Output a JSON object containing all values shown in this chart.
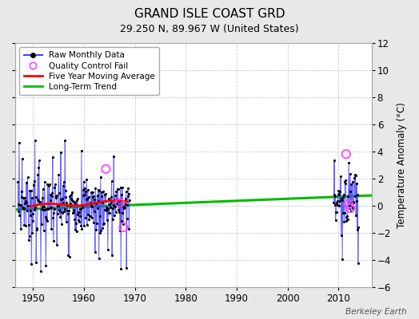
{
  "title": "GRAND ISLE COAST GRD",
  "subtitle": "29.250 N, 89.967 W (United States)",
  "ylabel": "Temperature Anomaly (°C)",
  "credit": "Berkeley Earth",
  "xlim": [
    1946.5,
    2016.5
  ],
  "ylim": [
    -6,
    12
  ],
  "yticks_right": [
    -6,
    -4,
    -2,
    0,
    2,
    4,
    6,
    8,
    10,
    12
  ],
  "xticks": [
    1950,
    1960,
    1970,
    1980,
    1990,
    2000,
    2010
  ],
  "bg_color": "#e8e8e8",
  "plot_bg_color": "#ffffff",
  "raw_color": "#4444ff",
  "raw_dot_color": "#000000",
  "qc_color": "#ff44ff",
  "ma_color": "#ff0000",
  "trend_color": "#00bb00",
  "trend_x": [
    1946.5,
    2016.5
  ],
  "trend_y": [
    -0.3,
    0.75
  ],
  "ma_x_start": 1949.5,
  "ma_x_end": 1968.5,
  "seed_early": 7,
  "seed_late": 15,
  "title_fontsize": 11,
  "subtitle_fontsize": 9,
  "tick_fontsize": 8.5
}
